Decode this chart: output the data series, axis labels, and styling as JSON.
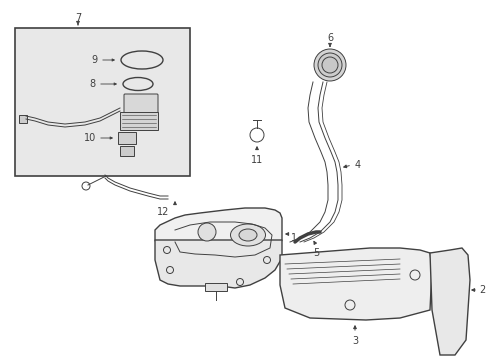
{
  "bg_color": "#ffffff",
  "inset_bg": "#e8e8e8",
  "line_color": "#404040",
  "label_color": "#000000",
  "fig_width": 4.89,
  "fig_height": 3.6,
  "dpi": 100
}
